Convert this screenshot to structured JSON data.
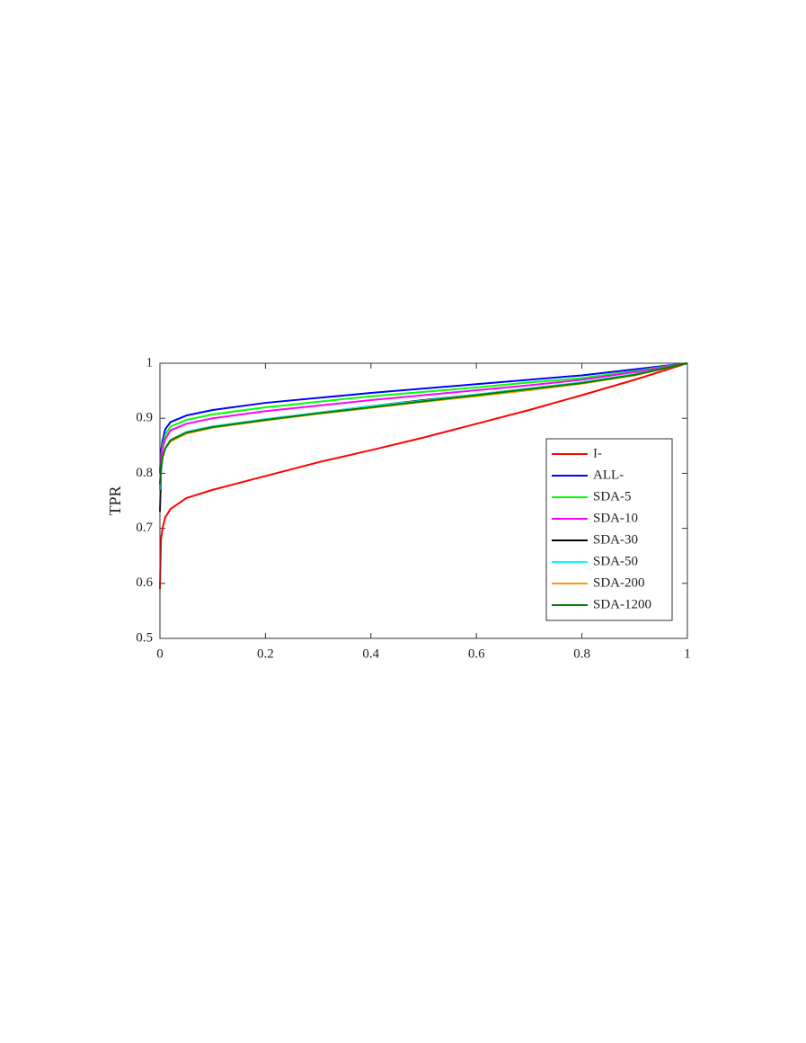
{
  "chart_data": {
    "type": "line",
    "ylabel": "TPR",
    "x": [
      0,
      0.002,
      0.005,
      0.01,
      0.02,
      0.05,
      0.1,
      0.2,
      0.3,
      0.4,
      0.5,
      0.6,
      0.7,
      0.8,
      0.9,
      1
    ],
    "series": [
      {
        "name": "I-",
        "color": "#ff0000",
        "values": [
          0.59,
          0.68,
          0.7,
          0.72,
          0.735,
          0.755,
          0.77,
          0.795,
          0.82,
          0.842,
          0.865,
          0.89,
          0.915,
          0.942,
          0.97,
          1
        ]
      },
      {
        "name": "ALL-",
        "color": "#0000ff",
        "values": [
          0.8,
          0.84,
          0.86,
          0.88,
          0.893,
          0.905,
          0.915,
          0.928,
          0.937,
          0.946,
          0.954,
          0.962,
          0.97,
          0.978,
          0.989,
          1
        ]
      },
      {
        "name": "SDA-5",
        "color": "#00ff00",
        "values": [
          0.8,
          0.83,
          0.85,
          0.87,
          0.885,
          0.897,
          0.907,
          0.92,
          0.93,
          0.94,
          0.948,
          0.956,
          0.965,
          0.973,
          0.986,
          1
        ]
      },
      {
        "name": "SDA-10",
        "color": "#ff00ff",
        "values": [
          0.8,
          0.83,
          0.845,
          0.862,
          0.878,
          0.89,
          0.9,
          0.913,
          0.923,
          0.933,
          0.942,
          0.951,
          0.96,
          0.97,
          0.984,
          1
        ]
      },
      {
        "name": "SDA-30",
        "color": "#000000",
        "values": [
          0.73,
          0.8,
          0.83,
          0.845,
          0.86,
          0.875,
          0.885,
          0.898,
          0.91,
          0.922,
          0.933,
          0.943,
          0.954,
          0.965,
          0.98,
          1
        ]
      },
      {
        "name": "SDA-50",
        "color": "#00ffff",
        "values": [
          0.77,
          0.8,
          0.83,
          0.845,
          0.86,
          0.875,
          0.885,
          0.898,
          0.91,
          0.922,
          0.932,
          0.943,
          0.954,
          0.965,
          0.98,
          1
        ]
      },
      {
        "name": "SDA-200",
        "color": "#ff9900",
        "values": [
          0.78,
          0.81,
          0.83,
          0.845,
          0.858,
          0.872,
          0.883,
          0.896,
          0.908,
          0.919,
          0.93,
          0.94,
          0.951,
          0.963,
          0.978,
          1
        ]
      },
      {
        "name": "SDA-1200",
        "color": "#007f00",
        "values": [
          0.78,
          0.81,
          0.83,
          0.845,
          0.86,
          0.874,
          0.884,
          0.897,
          0.909,
          0.92,
          0.931,
          0.942,
          0.953,
          0.964,
          0.979,
          1
        ]
      }
    ],
    "xlim": [
      0,
      1
    ],
    "xticks": [
      0,
      0.2,
      0.4,
      0.6,
      0.8,
      1
    ],
    "ylim": [
      0.5,
      1
    ],
    "yticks": [
      0.5,
      0.6,
      0.7,
      0.8,
      0.9,
      1
    ],
    "legend": "lower right",
    "grid": false
  }
}
